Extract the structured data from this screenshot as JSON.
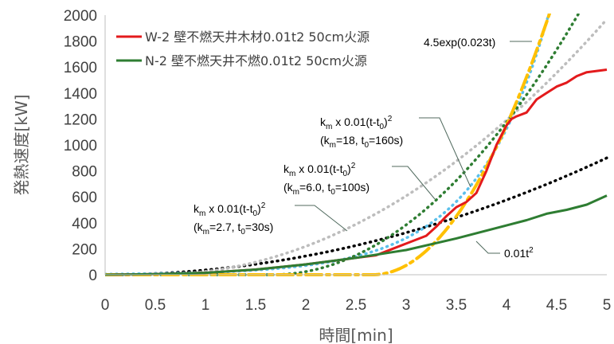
{
  "chart_data": {
    "type": "line",
    "xlabel": "時間[min]",
    "ylabel": "発熱速度[kW]",
    "xlim": [
      0,
      5
    ],
    "ylim": [
      0,
      2000
    ],
    "x_ticks": [
      "0",
      "0.5",
      "1",
      "1.5",
      "2",
      "2.5",
      "3",
      "3.5",
      "4",
      "4.5",
      "5"
    ],
    "y_ticks": [
      "0",
      "200",
      "400",
      "600",
      "800",
      "1000",
      "1200",
      "1400",
      "1600",
      "1800",
      "2000"
    ],
    "grid": "none",
    "legend_position": "top-left",
    "series": [
      {
        "name": "W-2 壁不燃天井木材0.01t2 50cm火源",
        "color": "#e31a1c",
        "style": "solid",
        "x": [
          0,
          0.5,
          1.0,
          1.5,
          2.0,
          2.3,
          2.5,
          2.7,
          2.8,
          3.0,
          3.1,
          3.2,
          3.3,
          3.4,
          3.5,
          3.6,
          3.7,
          3.8,
          3.9,
          4.0,
          4.05,
          4.1,
          4.2,
          4.3,
          4.4,
          4.5,
          4.6,
          4.7,
          4.8,
          4.9,
          5.0
        ],
        "y": [
          0,
          5,
          15,
          40,
          80,
          110,
          130,
          150,
          180,
          240,
          270,
          300,
          370,
          450,
          520,
          560,
          630,
          800,
          1000,
          1150,
          1200,
          1220,
          1250,
          1350,
          1400,
          1450,
          1480,
          1530,
          1560,
          1570,
          1580
        ]
      },
      {
        "name": "N-2 壁不燃天井不燃0.01t2 50cm火源",
        "color": "#2e7d32",
        "style": "solid",
        "x": [
          0,
          0.5,
          1.0,
          1.5,
          2.0,
          2.5,
          3.0,
          3.5,
          4.0,
          4.2,
          4.4,
          4.6,
          4.8,
          5.0
        ],
        "y": [
          0,
          5,
          15,
          40,
          80,
          130,
          190,
          280,
          380,
          420,
          470,
          500,
          540,
          610
        ]
      }
    ],
    "reference_curves": [
      {
        "label": "0.01t2",
        "kind": "power",
        "k": 0.01,
        "t0": 0,
        "color": "#000000",
        "style": "dotted"
      },
      {
        "label": "4.5exp(0.023t)",
        "kind": "exp",
        "a": 4.5,
        "b": 0.023,
        "color": "#5bc0eb",
        "style": "dotted"
      },
      {
        "label": "km x 0.01(t-t0)2 (km=2.7, t0=30s)",
        "kind": "power",
        "k": 0.027,
        "t0": 30,
        "color": "#bdbdbd",
        "style": "dotted"
      },
      {
        "label": "km x 0.01(t-t0)2 (km=6.0, t0=100s)",
        "kind": "power",
        "k": 0.06,
        "t0": 100,
        "color": "#2e7d32",
        "style": "dotted"
      },
      {
        "label": "km x 0.01(t-t0)2 (km=18, t0=160s)",
        "kind": "power",
        "k": 0.18,
        "t0": 160,
        "color": "#ffc000",
        "style": "dashdot"
      }
    ],
    "annotations": [
      {
        "kind": "kmt",
        "line2": "(km=18, t0=160s)",
        "km": "18",
        "t0": "160s"
      },
      {
        "kind": "kmt",
        "line2": "(km=6.0, t0=100s)",
        "km": "6.0",
        "t0": "100s"
      },
      {
        "kind": "kmt",
        "line2": "(km=2.7, t0=30s)",
        "km": "2.7",
        "t0": "30s"
      },
      {
        "kind": "exp",
        "text": "4.5exp(0.023t)"
      },
      {
        "kind": "t2",
        "text": "0.01t2"
      }
    ]
  }
}
